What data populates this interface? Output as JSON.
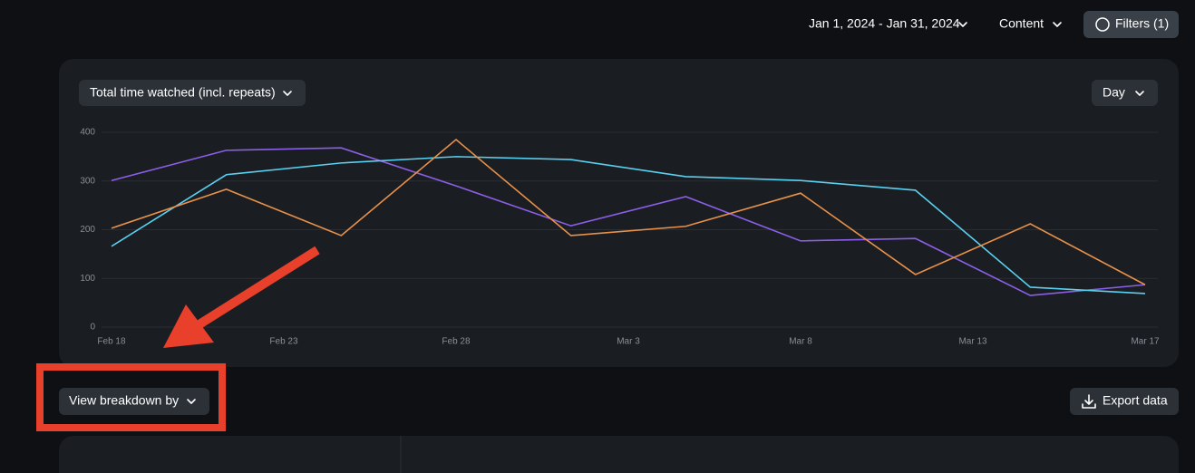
{
  "header": {
    "date_range": "Jan 1, 2024 - Jan 31, 2024",
    "content": "Content",
    "filters": "Filters (1)"
  },
  "chart_controls": {
    "metric": "Total time watched (incl. repeats)",
    "interval": "Day"
  },
  "chart_data": {
    "type": "line",
    "x": [
      0,
      1,
      2,
      3,
      4,
      5,
      6,
      7,
      8,
      9
    ],
    "xlim": [
      0,
      9
    ],
    "xticks": [
      {
        "value": 0,
        "label": "Feb 18"
      },
      {
        "value": 1.5,
        "label": "Feb 23"
      },
      {
        "value": 3,
        "label": "Feb 28"
      },
      {
        "value": 4.5,
        "label": "Mar 3"
      },
      {
        "value": 6,
        "label": "Mar 8"
      },
      {
        "value": 7.5,
        "label": "Mar 13"
      },
      {
        "value": 9,
        "label": "Mar 17"
      }
    ],
    "ylim": [
      0,
      400
    ],
    "yticks": [
      0,
      100,
      200,
      300,
      400
    ],
    "grid": true,
    "series": [
      {
        "color": "#8c5fe8",
        "values": [
          301,
          363,
          368,
          290,
          208,
          268,
          177,
          182,
          65,
          87
        ]
      },
      {
        "color": "#5ad0f0",
        "values": [
          166,
          313,
          337,
          350,
          344,
          309,
          301,
          281,
          82,
          69
        ]
      },
      {
        "color": "#e8914a",
        "values": [
          203,
          283,
          188,
          385,
          188,
          207,
          275,
          108,
          212,
          87
        ]
      }
    ]
  },
  "footer": {
    "breakdown": "View breakdown by",
    "export": "Export data"
  }
}
